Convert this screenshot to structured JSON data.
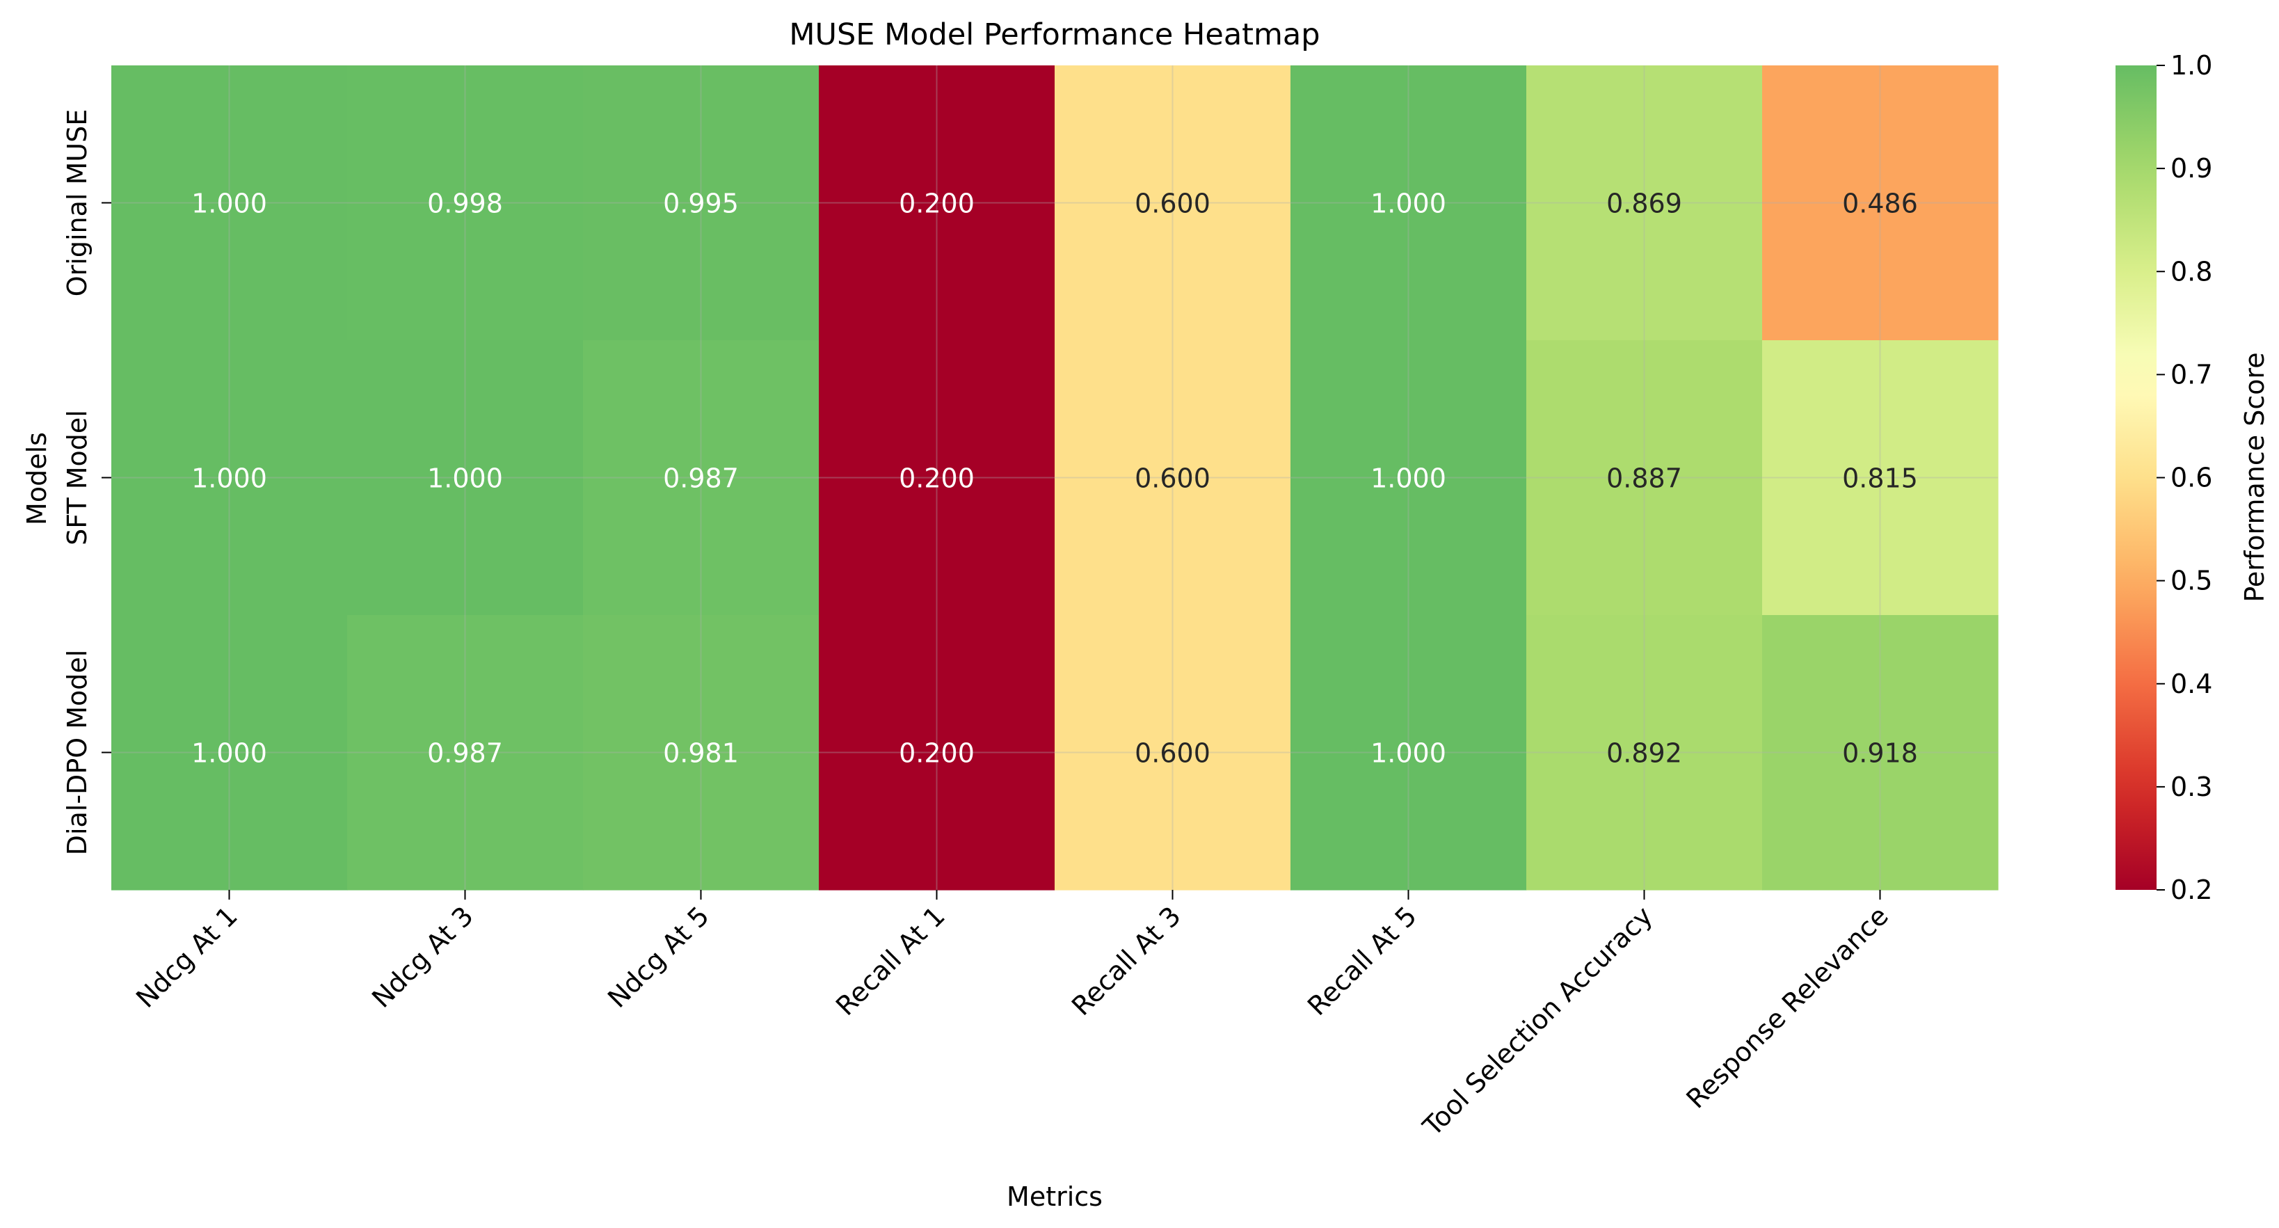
{
  "chart_data": {
    "type": "heatmap",
    "title": "MUSE Model Performance Heatmap",
    "xlabel": "Metrics",
    "ylabel": "Models",
    "x_categories": [
      "Ndcg At 1",
      "Ndcg At 3",
      "Ndcg At 5",
      "Recall At 1",
      "Recall At 3",
      "Recall At 5",
      "Tool Selection Accuracy",
      "Response Relevance"
    ],
    "y_categories": [
      "Original MUSE",
      "SFT Model",
      "Dial-DPO Model"
    ],
    "values": [
      [
        1.0,
        0.998,
        0.995,
        0.2,
        0.6,
        1.0,
        0.869,
        0.486
      ],
      [
        1.0,
        1.0,
        0.987,
        0.2,
        0.6,
        1.0,
        0.887,
        0.815
      ],
      [
        1.0,
        0.987,
        0.981,
        0.2,
        0.6,
        1.0,
        0.892,
        0.918
      ]
    ],
    "value_format": "0.000",
    "colormap": "RdYlGn",
    "vmin": 0.2,
    "vmax": 1.0,
    "colorbar": {
      "label": "Performance Score",
      "ticks": [
        0.2,
        0.3,
        0.4,
        0.5,
        0.6,
        0.7,
        0.8,
        0.9,
        1.0
      ]
    },
    "grid": true,
    "colors": {
      "low": "#a50026",
      "mid": "#ffffbf",
      "high": "#66bd63"
    }
  }
}
